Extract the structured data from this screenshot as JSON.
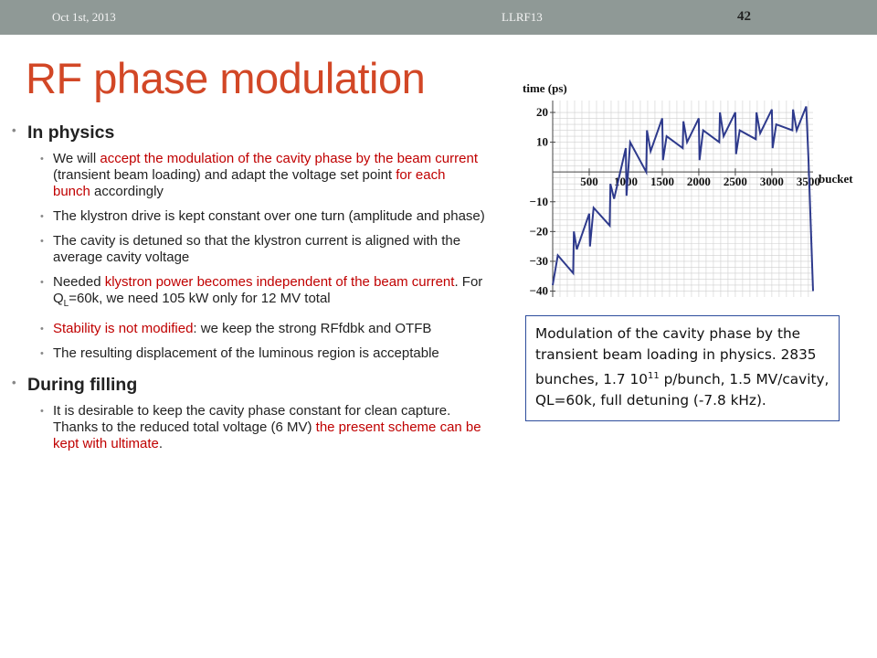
{
  "header": {
    "date": "Oct 1st, 2013",
    "center": "LLRF13",
    "page": "42",
    "bar_color": "#8f9996"
  },
  "title": "RF phase modulation",
  "section1": {
    "heading": "In physics",
    "bullet1": {
      "a": "We will ",
      "b": "accept the modulation of the cavity phase by the beam current",
      "c": " (transient beam loading) and adapt the voltage set point ",
      "d": "for each bunch",
      "e": " accordingly"
    },
    "bullet2": "The klystron drive is kept constant over one turn (amplitude and phase)",
    "bullet3": "The cavity is detuned so that the klystron current is aligned with the average cavity voltage",
    "bullet4": {
      "a": "Needed ",
      "b": "klystron power becomes independent of the beam current",
      "c": ". For Q",
      "sub": "L",
      "d": "=60k, we need 105 kW only for 12 MV total"
    },
    "bullet5": {
      "a": "Stability is not modified",
      "b": ": we keep the strong RFfdbk and OTFB"
    },
    "bullet6": "The resulting displacement of the luminous region is acceptable"
  },
  "section2": {
    "heading": "During filling",
    "bullet1": {
      "a": "It is desirable to keep the cavity phase constant for clean capture. Thanks to the reduced total voltage (6 MV) ",
      "b": "the present scheme can be kept with ultimate",
      "c": "."
    }
  },
  "chart_data": {
    "type": "line",
    "ylabel": "time (ps)",
    "xlabel": "bucket",
    "xlim": [
      0,
      3564
    ],
    "ylim": [
      -42,
      24
    ],
    "xticks": [
      500,
      1000,
      1500,
      2000,
      2500,
      3000,
      3500
    ],
    "yticks": [
      -40,
      -30,
      -20,
      -10,
      10,
      20
    ],
    "grid": true,
    "line_color": "#2e3a8c",
    "series": [
      {
        "x": [
          0,
          70,
          280,
          290,
          330,
          500,
          510,
          560,
          780,
          790,
          840,
          1000,
          1010,
          1060,
          1280,
          1290,
          1340,
          1500,
          1510,
          1560,
          1780,
          1790,
          1840,
          2000,
          2010,
          2060,
          2280,
          2290,
          2340,
          2500,
          2510,
          2560,
          2780,
          2790,
          2840,
          3000,
          3010,
          3060,
          3280,
          3290,
          3340,
          3470,
          3500,
          3564
        ],
        "y": [
          -38,
          -28,
          -34,
          -20,
          -26,
          -14,
          -25,
          -12,
          -18,
          -4,
          -9,
          8,
          -8,
          10,
          0,
          14,
          7,
          18,
          4,
          12,
          8,
          17,
          10,
          18,
          4,
          14,
          10,
          20,
          12,
          20,
          6,
          14,
          11,
          20,
          13,
          21,
          8,
          16,
          14,
          21,
          14,
          22,
          5,
          -40
        ]
      }
    ]
  },
  "caption": {
    "a": "Modulation of the cavity phase by the transient beam loading in physics. 2835 bunches, 1.7 10",
    "sup": "11",
    "b": " p/bunch, 1.5 MV/cavity, QL=60k, full detuning (-7.8 kHz)."
  }
}
